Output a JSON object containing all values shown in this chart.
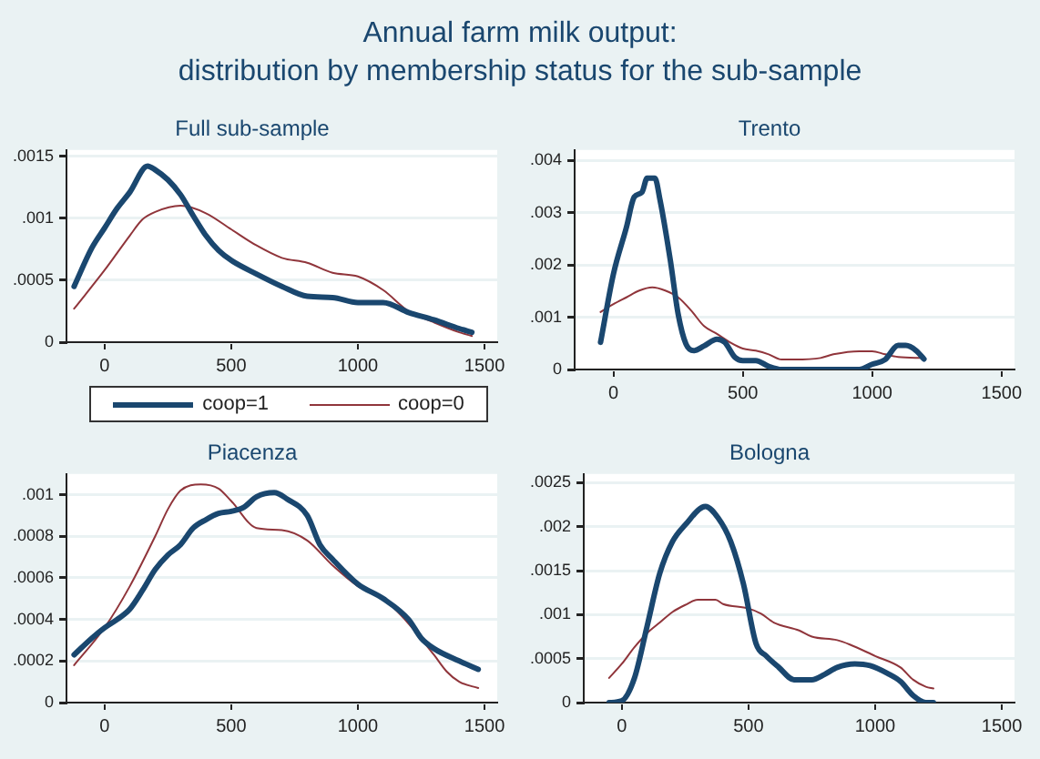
{
  "chart_data": [
    {
      "type": "other",
      "title": "Annual farm milk output:",
      "subtitle": "distribution by membership status for the sub-sample"
    },
    {
      "type": "line",
      "title": "Full sub-sample",
      "xlim": [
        -150,
        1550
      ],
      "xticks": [
        0,
        500,
        1000,
        1500
      ],
      "ylim": [
        0,
        0.00155
      ],
      "yticks": [
        {
          "value": 0,
          "label": "0"
        },
        {
          "value": 0.0005,
          "label": ".0005"
        },
        {
          "value": 0.001,
          "label": ".001"
        },
        {
          "value": 0.0015,
          "label": ".0015"
        }
      ],
      "grid": "y",
      "legend": "bottom",
      "marker": "none",
      "line_style": "solid",
      "series": [
        {
          "name": "coop=1",
          "color": "#1a476f",
          "x": [
            -120,
            -50,
            0,
            50,
            100,
            170,
            200,
            250,
            300,
            350,
            400,
            450,
            500,
            600,
            700,
            800,
            900,
            1000,
            1100,
            1200,
            1300,
            1400,
            1450
          ],
          "values": [
            0.00045,
            0.00076,
            0.00092,
            0.00108,
            0.00121,
            0.00142,
            0.00139,
            0.00131,
            0.00119,
            0.00102,
            0.00086,
            0.00074,
            0.00066,
            0.00055,
            0.00045,
            0.00037,
            0.00036,
            0.00032,
            0.00032,
            0.00024,
            0.00018,
            0.00011,
            8e-05
          ]
        },
        {
          "name": "coop=0",
          "color": "#90353b",
          "x": [
            -120,
            0,
            100,
            150,
            200,
            300,
            400,
            500,
            600,
            700,
            800,
            900,
            1000,
            1100,
            1200,
            1300,
            1400,
            1450
          ],
          "values": [
            0.00027,
            0.00058,
            0.00086,
            0.00099,
            0.00105,
            0.0011,
            0.00104,
            0.00091,
            0.00078,
            0.00068,
            0.00064,
            0.00056,
            0.00053,
            0.00042,
            0.00025,
            0.00016,
            8e-05,
            5e-05
          ]
        }
      ]
    },
    {
      "type": "line",
      "title": "Trento",
      "xlim": [
        -150,
        1550
      ],
      "xticks": [
        0,
        500,
        1000,
        1500
      ],
      "ylim": [
        0,
        0.0042
      ],
      "yticks": [
        {
          "value": 0,
          "label": "0"
        },
        {
          "value": 0.001,
          "label": ".001"
        },
        {
          "value": 0.002,
          "label": ".002"
        },
        {
          "value": 0.003,
          "label": ".003"
        },
        {
          "value": 0.004,
          "label": ".004"
        }
      ],
      "grid": "y",
      "marker": "none",
      "line_style": "solid",
      "series": [
        {
          "color": "#1a476f",
          "x": [
            -50,
            0,
            50,
            80,
            110,
            130,
            160,
            180,
            220,
            250,
            280,
            310,
            350,
            400,
            430,
            470,
            500,
            550,
            600,
            650,
            950,
            1000,
            1050,
            1100,
            1130,
            1170,
            1200
          ],
          "values": [
            0.00052,
            0.00183,
            0.00272,
            0.0033,
            0.00339,
            0.00366,
            0.00366,
            0.00324,
            0.00208,
            0.00106,
            0.00049,
            0.00036,
            0.00045,
            0.00058,
            0.00052,
            0.00023,
            0.00017,
            0.00017,
            6e-05,
            0,
            0,
            0.0001,
            0.00019,
            0.00046,
            0.00046,
            0.00036,
            0.0002
          ]
        },
        {
          "color": "#90353b",
          "x": [
            -50,
            0,
            50,
            100,
            150,
            200,
            250,
            300,
            350,
            400,
            450,
            500,
            550,
            600,
            650,
            700,
            800,
            850,
            950,
            1000,
            1050,
            1100,
            1200
          ],
          "values": [
            0.0011,
            0.00125,
            0.00138,
            0.00151,
            0.00157,
            0.00151,
            0.00138,
            0.00113,
            0.00083,
            0.00068,
            0.00052,
            0.0004,
            0.00036,
            0.00029,
            0.00019,
            0.00019,
            0.00022,
            0.00029,
            0.00035,
            0.00035,
            0.00029,
            0.00024,
            0.00022
          ]
        }
      ]
    },
    {
      "type": "line",
      "title": "Piacenza",
      "xlim": [
        -150,
        1550
      ],
      "xticks": [
        0,
        500,
        1000,
        1500
      ],
      "ylim": [
        0,
        0.0011
      ],
      "yticks": [
        {
          "value": 0,
          "label": "0"
        },
        {
          "value": 0.0002,
          "label": ".0002"
        },
        {
          "value": 0.0004,
          "label": ".0004"
        },
        {
          "value": 0.0006,
          "label": ".0006"
        },
        {
          "value": 0.0008,
          "label": ".0008"
        },
        {
          "value": 0.001,
          "label": ".001"
        }
      ],
      "grid": "y",
      "marker": "none",
      "line_style": "solid",
      "series": [
        {
          "color": "#1a476f",
          "x": [
            -120,
            -50,
            0,
            50,
            100,
            150,
            200,
            250,
            300,
            350,
            400,
            450,
            500,
            550,
            600,
            670,
            720,
            800,
            850,
            900,
            1000,
            1100,
            1200,
            1250,
            1300,
            1400,
            1475
          ],
          "values": [
            0.00023,
            0.00031,
            0.00036,
            0.0004,
            0.00045,
            0.00054,
            0.00064,
            0.00071,
            0.00076,
            0.00084,
            0.00088,
            0.00091,
            0.00092,
            0.00094,
            0.00099,
            0.00101,
            0.00098,
            0.0009,
            0.00076,
            0.00069,
            0.00057,
            0.0005,
            0.0004,
            0.00031,
            0.00026,
            0.0002,
            0.00016
          ]
        },
        {
          "color": "#90353b",
          "x": [
            -120,
            0,
            100,
            200,
            250,
            300,
            380,
            450,
            500,
            600,
            700,
            800,
            900,
            1000,
            1100,
            1200,
            1300,
            1350,
            1400,
            1475
          ],
          "values": [
            0.00018,
            0.00036,
            0.00056,
            0.0008,
            0.00093,
            0.00102,
            0.00105,
            0.00103,
            0.00097,
            0.00084,
            0.00083,
            0.00078,
            0.00066,
            0.00056,
            0.0005,
            0.00038,
            0.00023,
            0.00015,
            0.0001,
            7e-05
          ]
        }
      ]
    },
    {
      "type": "line",
      "title": "Bologna",
      "xlim": [
        -150,
        1550
      ],
      "xticks": [
        0,
        500,
        1000,
        1500
      ],
      "ylim": [
        0,
        0.0026
      ],
      "yticks": [
        {
          "value": 0,
          "label": "0"
        },
        {
          "value": 0.0005,
          "label": ".0005"
        },
        {
          "value": 0.001,
          "label": ".001"
        },
        {
          "value": 0.0015,
          "label": ".0015"
        },
        {
          "value": 0.002,
          "label": ".002"
        },
        {
          "value": 0.0025,
          "label": ".0025"
        }
      ],
      "grid": "y",
      "marker": "none",
      "line_style": "solid",
      "series": [
        {
          "color": "#1a476f",
          "x": [
            -50,
            0,
            50,
            100,
            150,
            200,
            250,
            330,
            380,
            430,
            480,
            530,
            570,
            620,
            680,
            750,
            800,
            850,
            920,
            980,
            1050,
            1100,
            1150,
            1200,
            1230
          ],
          "values": [
            0,
            2e-05,
            0.00028,
            0.00087,
            0.00147,
            0.00183,
            0.00202,
            0.00223,
            0.0021,
            0.00183,
            0.00135,
            0.00067,
            0.00053,
            0.0004,
            0.00026,
            0.00026,
            0.00032,
            0.0004,
            0.00044,
            0.00042,
            0.00033,
            0.00024,
            8e-05,
            0,
            0
          ]
        },
        {
          "color": "#90353b",
          "x": [
            -50,
            0,
            50,
            100,
            150,
            200,
            250,
            300,
            370,
            400,
            500,
            550,
            600,
            700,
            750,
            850,
            900,
            1000,
            1100,
            1150,
            1200,
            1230
          ],
          "values": [
            0.00028,
            0.00044,
            0.00063,
            0.00079,
            0.00091,
            0.00103,
            0.00111,
            0.00117,
            0.00117,
            0.00112,
            0.00107,
            0.00101,
            0.00091,
            0.00082,
            0.00075,
            0.00071,
            0.00066,
            0.00053,
            0.0004,
            0.00026,
            0.00018,
            0.00016
          ]
        }
      ]
    }
  ]
}
